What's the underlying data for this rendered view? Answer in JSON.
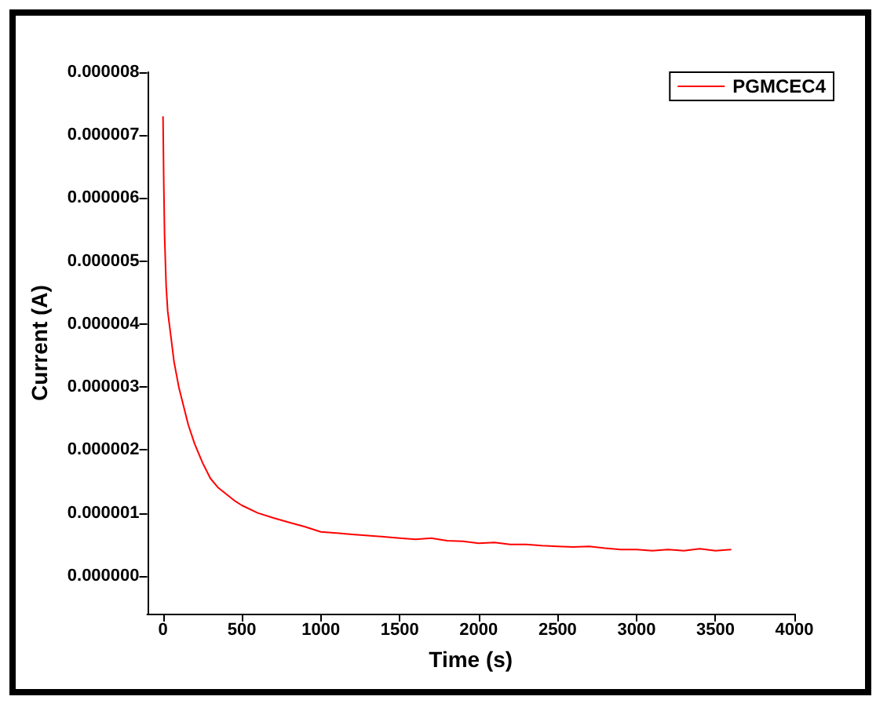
{
  "chart_data": {
    "type": "line",
    "xlabel": "Time (s)",
    "ylabel": "Current (A)",
    "x": [
      0,
      5,
      10,
      20,
      30,
      40,
      50,
      70,
      100,
      130,
      160,
      200,
      250,
      300,
      350,
      400,
      450,
      500,
      600,
      700,
      800,
      900,
      1000,
      1100,
      1200,
      1300,
      1400,
      1500,
      1600,
      1700,
      1800,
      1900,
      2000,
      2100,
      2200,
      2300,
      2400,
      2500,
      2600,
      2700,
      2800,
      2900,
      3000,
      3100,
      3200,
      3300,
      3400,
      3500,
      3600
    ],
    "series": [
      {
        "name": "PGMCEC4",
        "color": "#ff0000",
        "values": [
          7.3e-06,
          6.2e-06,
          5.4e-06,
          4.6e-06,
          4.2e-06,
          4e-06,
          3.8e-06,
          3.4e-06,
          3e-06,
          2.7e-06,
          2.4e-06,
          2.1e-06,
          1.8e-06,
          1.55e-06,
          1.4e-06,
          1.3e-06,
          1.2e-06,
          1.12e-06,
          1e-06,
          9.2e-07,
          8.5e-07,
          7.8e-07,
          7e-07,
          6.8e-07,
          6.6e-07,
          6.4e-07,
          6.2e-07,
          6e-07,
          5.8e-07,
          6e-07,
          5.6e-07,
          5.5e-07,
          5.2e-07,
          5.3e-07,
          5e-07,
          5e-07,
          4.8e-07,
          4.7e-07,
          4.6e-07,
          4.7e-07,
          4.4e-07,
          4.2e-07,
          4.2e-07,
          4e-07,
          4.2e-07,
          4e-07,
          4.3e-07,
          4e-07,
          4.2e-07
        ]
      }
    ],
    "xlim": [
      -100,
      4000
    ],
    "xticks": [
      0,
      500,
      1000,
      1500,
      2000,
      2500,
      3000,
      3500,
      4000
    ],
    "ylim": [
      -6e-07,
      8e-06
    ],
    "yticks": [
      {
        "value": 0,
        "label": "0.000000"
      },
      {
        "value": 1e-06,
        "label": "0.000001"
      },
      {
        "value": 2e-06,
        "label": "0.000002"
      },
      {
        "value": 3e-06,
        "label": "0.000003"
      },
      {
        "value": 4e-06,
        "label": "0.000004"
      },
      {
        "value": 5e-06,
        "label": "0.000005"
      },
      {
        "value": 6e-06,
        "label": "0.000006"
      },
      {
        "value": 7e-06,
        "label": "0.000007"
      },
      {
        "value": 8e-06,
        "label": "0.000008"
      }
    ],
    "grid": false,
    "legend": "top right",
    "marker": "none",
    "line_style": "solid"
  }
}
